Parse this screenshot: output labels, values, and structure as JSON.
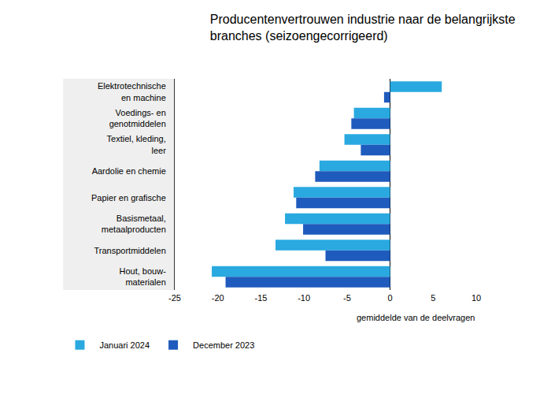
{
  "chart_data": {
    "type": "bar",
    "orientation": "horizontal",
    "title": "Producentenvertrouwen industrie naar de belangrijkste\nbranches (seizoengecorrigeerd)",
    "xlabel": "gemiddelde van de deelvragen",
    "categories": [
      "Elektrotechnische\nen machine",
      "Voedings- en\ngenotmiddelen",
      "Textiel, kleding,\nleer",
      "Aardolie en chemie",
      "Papier en grafische",
      "Basismetaal,\nmetaalproducten",
      "Transportmiddelen",
      "Hout, bouw-\nmaterialen"
    ],
    "series": [
      {
        "name": "Januari 2024",
        "color": "#29a9e0",
        "values": [
          6.0,
          -4.2,
          -5.3,
          -8.2,
          -11.2,
          -12.2,
          -13.3,
          -20.7
        ]
      },
      {
        "name": "December 2023",
        "color": "#1f5bbd",
        "values": [
          -0.7,
          -4.5,
          -3.4,
          -8.7,
          -10.9,
          -10.1,
          -7.5,
          -19.1
        ]
      }
    ],
    "xlim": [
      -25,
      10
    ],
    "xticks": [
      -25,
      -20,
      -15,
      -10,
      -5,
      0,
      5,
      10
    ],
    "grid": false,
    "legend": "bottom"
  }
}
